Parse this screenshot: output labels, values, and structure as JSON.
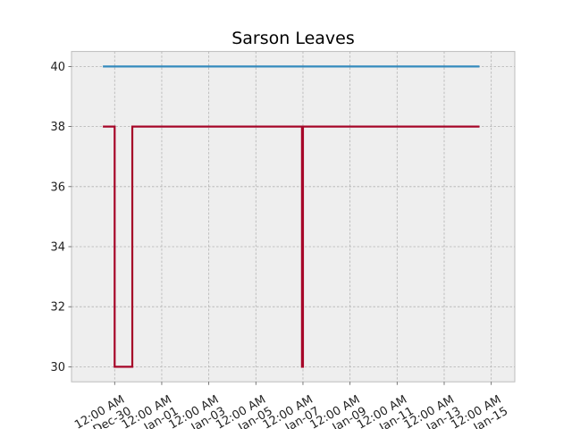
{
  "chart_data": {
    "type": "line",
    "title": "Sarson Leaves",
    "xlabel": "",
    "ylabel": "",
    "ylim": [
      29.5,
      40.5
    ],
    "grid": true,
    "y_ticks": [
      30,
      32,
      34,
      36,
      38,
      40
    ],
    "x_ticks": [
      {
        "x": "2021-12-30",
        "label": "12:00 AM\nDec-30"
      },
      {
        "x": "2022-01-01",
        "label": "12:00 AM\nJan-01"
      },
      {
        "x": "2022-01-03",
        "label": "12:00 AM\nJan-03"
      },
      {
        "x": "2022-01-05",
        "label": "12:00 AM\nJan-05"
      },
      {
        "x": "2022-01-07",
        "label": "12:00 AM\nJan-07"
      },
      {
        "x": "2022-01-09",
        "label": "12:00 AM\nJan-09"
      },
      {
        "x": "2022-01-11",
        "label": "12:00 AM\nJan-11"
      },
      {
        "x": "2022-01-13",
        "label": "12:00 AM\nJan-13"
      },
      {
        "x": "2022-01-15",
        "label": "12:00 AM\nJan-15"
      }
    ],
    "xlim": [
      "2021-12-28 04:00",
      "2022-01-16 00:00"
    ],
    "series": [
      {
        "color": "#348abd",
        "step": true,
        "points": [
          {
            "x": "2021-12-29 12:00",
            "y": 40
          },
          {
            "x": "2022-01-14 12:00",
            "y": 40
          }
        ]
      },
      {
        "color": "#a60628",
        "step": true,
        "points": [
          {
            "x": "2021-12-29 12:00",
            "y": 38
          },
          {
            "x": "2021-12-30 00:00",
            "y": 30
          },
          {
            "x": "2021-12-30 18:00",
            "y": 38
          },
          {
            "x": "2022-01-06 23:00",
            "y": 30
          },
          {
            "x": "2022-01-07 00:00",
            "y": 38
          },
          {
            "x": "2022-01-14 12:00",
            "y": 38
          }
        ]
      }
    ]
  }
}
